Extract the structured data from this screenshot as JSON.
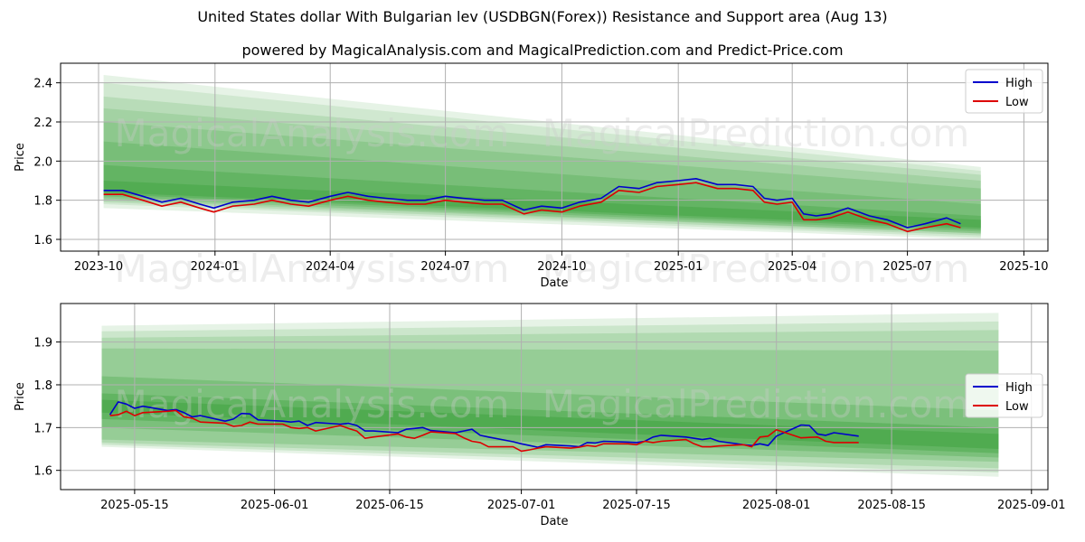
{
  "title": "United States dollar With Bulgarian lev (USDBGN(Forex)) Resistance and Support area (Aug 13)",
  "subtitle": "powered by MagicalAnalysis.com and MagicalPrediction.com and Predict-Price.com",
  "watermarks": [
    "MagicalAnalysis.com",
    "MagicalPrediction.com"
  ],
  "colors": {
    "high": "#0000cc",
    "low": "#dd0000",
    "band": "#2e9a2e",
    "grid": "#b0b0b0"
  },
  "chart_data": [
    {
      "type": "line",
      "xlabel": "Date",
      "ylabel": "Price",
      "xlim": [
        "2023-09-01",
        "2025-10-20"
      ],
      "ylim": [
        1.54,
        2.5
      ],
      "x_ticks": [
        "2023-10",
        "2024-01",
        "2024-04",
        "2024-07",
        "2024-10",
        "2025-01",
        "2025-04",
        "2025-07",
        "2025-10"
      ],
      "y_ticks": [
        1.6,
        1.8,
        2.0,
        2.2,
        2.4
      ],
      "grid": true,
      "legend": {
        "position": "top-right",
        "entries": [
          "High",
          "Low"
        ]
      },
      "bands": {
        "x_start": "2023-10-05",
        "x_end": "2025-08-28",
        "ranges": [
          {
            "start": [
              1.76,
              2.44
            ],
            "end": [
              1.6,
              1.97
            ],
            "opacity": 0.12
          },
          {
            "start": [
              1.78,
              2.4
            ],
            "end": [
              1.61,
              1.95
            ],
            "opacity": 0.12
          },
          {
            "start": [
              1.79,
              2.33
            ],
            "end": [
              1.62,
              1.93
            ],
            "opacity": 0.15
          },
          {
            "start": [
              1.8,
              2.27
            ],
            "end": [
              1.63,
              1.9
            ],
            "opacity": 0.15
          },
          {
            "start": [
              1.81,
              2.2
            ],
            "end": [
              1.63,
              1.86
            ],
            "opacity": 0.18
          },
          {
            "start": [
              1.82,
              2.1
            ],
            "end": [
              1.64,
              1.78
            ],
            "opacity": 0.22
          },
          {
            "start": [
              1.83,
              1.98
            ],
            "end": [
              1.65,
              1.72
            ],
            "opacity": 0.28
          },
          {
            "start": [
              1.84,
              1.9
            ],
            "end": [
              1.66,
              1.7
            ],
            "opacity": 0.32
          }
        ]
      },
      "series": [
        {
          "name": "High",
          "x": [
            "2023-10-05",
            "2023-10-20",
            "2023-11-05",
            "2023-11-20",
            "2023-12-05",
            "2023-12-20",
            "2023-12-31",
            "2024-01-15",
            "2024-02-01",
            "2024-02-15",
            "2024-03-01",
            "2024-03-15",
            "2024-04-01",
            "2024-04-15",
            "2024-05-01",
            "2024-05-15",
            "2024-06-01",
            "2024-06-15",
            "2024-07-01",
            "2024-07-15",
            "2024-08-01",
            "2024-08-15",
            "2024-09-01",
            "2024-09-15",
            "2024-10-01",
            "2024-10-15",
            "2024-11-01",
            "2024-11-15",
            "2024-12-01",
            "2024-12-15",
            "2025-01-01",
            "2025-01-15",
            "2025-02-01",
            "2025-02-15",
            "2025-03-01",
            "2025-03-10",
            "2025-03-20",
            "2025-04-01",
            "2025-04-10",
            "2025-04-20",
            "2025-05-01",
            "2025-05-15",
            "2025-06-01",
            "2025-06-15",
            "2025-07-01",
            "2025-07-15",
            "2025-08-01",
            "2025-08-12"
          ],
          "values": [
            1.85,
            1.85,
            1.82,
            1.79,
            1.81,
            1.78,
            1.76,
            1.79,
            1.8,
            1.82,
            1.8,
            1.79,
            1.82,
            1.84,
            1.82,
            1.81,
            1.8,
            1.8,
            1.82,
            1.81,
            1.8,
            1.8,
            1.75,
            1.77,
            1.76,
            1.79,
            1.81,
            1.87,
            1.86,
            1.89,
            1.9,
            1.91,
            1.88,
            1.88,
            1.87,
            1.81,
            1.8,
            1.81,
            1.73,
            1.72,
            1.73,
            1.76,
            1.72,
            1.7,
            1.66,
            1.68,
            1.71,
            1.68
          ]
        },
        {
          "name": "Low",
          "x": [
            "2023-10-05",
            "2023-10-20",
            "2023-11-05",
            "2023-11-20",
            "2023-12-05",
            "2023-12-20",
            "2023-12-31",
            "2024-01-15",
            "2024-02-01",
            "2024-02-15",
            "2024-03-01",
            "2024-03-15",
            "2024-04-01",
            "2024-04-15",
            "2024-05-01",
            "2024-05-15",
            "2024-06-01",
            "2024-06-15",
            "2024-07-01",
            "2024-07-15",
            "2024-08-01",
            "2024-08-15",
            "2024-09-01",
            "2024-09-15",
            "2024-10-01",
            "2024-10-15",
            "2024-11-01",
            "2024-11-15",
            "2024-12-01",
            "2024-12-15",
            "2025-01-01",
            "2025-01-15",
            "2025-02-01",
            "2025-02-15",
            "2025-03-01",
            "2025-03-10",
            "2025-03-20",
            "2025-04-01",
            "2025-04-10",
            "2025-04-20",
            "2025-05-01",
            "2025-05-15",
            "2025-06-01",
            "2025-06-15",
            "2025-07-01",
            "2025-07-15",
            "2025-08-01",
            "2025-08-12"
          ],
          "values": [
            1.83,
            1.83,
            1.8,
            1.77,
            1.79,
            1.76,
            1.74,
            1.77,
            1.78,
            1.8,
            1.78,
            1.77,
            1.8,
            1.82,
            1.8,
            1.79,
            1.78,
            1.78,
            1.8,
            1.79,
            1.78,
            1.78,
            1.73,
            1.75,
            1.74,
            1.77,
            1.79,
            1.85,
            1.84,
            1.87,
            1.88,
            1.89,
            1.86,
            1.86,
            1.85,
            1.79,
            1.78,
            1.79,
            1.7,
            1.7,
            1.71,
            1.74,
            1.7,
            1.68,
            1.64,
            1.66,
            1.68,
            1.66
          ]
        }
      ]
    },
    {
      "type": "line",
      "xlabel": "Date",
      "ylabel": "Price",
      "xlim": [
        "2025-05-06",
        "2025-09-03"
      ],
      "ylim": [
        1.555,
        1.99
      ],
      "x_ticks": [
        "2025-05-15",
        "2025-06-01",
        "2025-06-15",
        "2025-07-01",
        "2025-07-15",
        "2025-08-01",
        "2025-08-15",
        "2025-09-01"
      ],
      "y_ticks": [
        1.6,
        1.7,
        1.8,
        1.9
      ],
      "grid": true,
      "legend": {
        "position": "center-right",
        "entries": [
          "High",
          "Low"
        ]
      },
      "bands": {
        "x_start": "2025-05-11",
        "x_end": "2025-08-28",
        "ranges": [
          {
            "start": [
              1.655,
              1.938
            ],
            "end": [
              1.585,
              1.968
            ],
            "opacity": 0.12
          },
          {
            "start": [
              1.66,
              1.925
            ],
            "end": [
              1.595,
              1.948
            ],
            "opacity": 0.14
          },
          {
            "start": [
              1.665,
              1.91
            ],
            "end": [
              1.605,
              1.928
            ],
            "opacity": 0.16
          },
          {
            "start": [
              1.672,
              1.885
            ],
            "end": [
              1.62,
              1.88
            ],
            "opacity": 0.2
          },
          {
            "start": [
              1.7,
              1.82
            ],
            "end": [
              1.63,
              1.74
            ],
            "opacity": 0.26
          },
          {
            "start": [
              1.72,
              1.78
            ],
            "end": [
              1.64,
              1.7
            ],
            "opacity": 0.32
          },
          {
            "start": [
              1.735,
              1.765
            ],
            "end": [
              1.65,
              1.685
            ],
            "opacity": 0.34
          }
        ]
      },
      "series": [
        {
          "name": "High",
          "x": [
            "2025-05-12",
            "2025-05-13",
            "2025-05-14",
            "2025-05-15",
            "2025-05-16",
            "2025-05-19",
            "2025-05-20",
            "2025-05-21",
            "2025-05-22",
            "2025-05-23",
            "2025-05-26",
            "2025-05-27",
            "2025-05-28",
            "2025-05-29",
            "2025-05-30",
            "2025-06-02",
            "2025-06-03",
            "2025-06-04",
            "2025-06-05",
            "2025-06-06",
            "2025-06-09",
            "2025-06-10",
            "2025-06-11",
            "2025-06-12",
            "2025-06-13",
            "2025-06-16",
            "2025-06-17",
            "2025-06-18",
            "2025-06-19",
            "2025-06-20",
            "2025-06-23",
            "2025-06-24",
            "2025-06-25",
            "2025-06-26",
            "2025-06-27",
            "2025-06-30",
            "2025-07-01",
            "2025-07-02",
            "2025-07-03",
            "2025-07-04",
            "2025-07-07",
            "2025-07-08",
            "2025-07-09",
            "2025-07-10",
            "2025-07-11",
            "2025-07-14",
            "2025-07-15",
            "2025-07-16",
            "2025-07-17",
            "2025-07-18",
            "2025-07-21",
            "2025-07-22",
            "2025-07-23",
            "2025-07-24",
            "2025-07-25",
            "2025-07-28",
            "2025-07-29",
            "2025-07-30",
            "2025-07-31",
            "2025-08-01",
            "2025-08-04",
            "2025-08-05",
            "2025-08-06",
            "2025-08-07",
            "2025-08-08",
            "2025-08-11"
          ],
          "values": [
            1.73,
            1.76,
            1.755,
            1.745,
            1.75,
            1.74,
            1.742,
            1.735,
            1.725,
            1.728,
            1.715,
            1.72,
            1.733,
            1.732,
            1.718,
            1.715,
            1.713,
            1.715,
            1.705,
            1.712,
            1.708,
            1.71,
            1.705,
            1.692,
            1.692,
            1.688,
            1.696,
            1.698,
            1.7,
            1.693,
            1.688,
            1.692,
            1.696,
            1.682,
            1.678,
            1.667,
            1.662,
            1.658,
            1.654,
            1.66,
            1.657,
            1.655,
            1.665,
            1.664,
            1.668,
            1.666,
            1.665,
            1.668,
            1.678,
            1.682,
            1.678,
            1.675,
            1.672,
            1.675,
            1.668,
            1.66,
            1.658,
            1.662,
            1.658,
            1.68,
            1.706,
            1.705,
            1.685,
            1.682,
            1.688,
            1.68
          ]
        },
        {
          "name": "Low",
          "x": [
            "2025-05-12",
            "2025-05-13",
            "2025-05-14",
            "2025-05-15",
            "2025-05-16",
            "2025-05-19",
            "2025-05-20",
            "2025-05-21",
            "2025-05-22",
            "2025-05-23",
            "2025-05-26",
            "2025-05-27",
            "2025-05-28",
            "2025-05-29",
            "2025-05-30",
            "2025-06-02",
            "2025-06-03",
            "2025-06-04",
            "2025-06-05",
            "2025-06-06",
            "2025-06-09",
            "2025-06-10",
            "2025-06-11",
            "2025-06-12",
            "2025-06-13",
            "2025-06-16",
            "2025-06-17",
            "2025-06-18",
            "2025-06-19",
            "2025-06-20",
            "2025-06-23",
            "2025-06-24",
            "2025-06-25",
            "2025-06-26",
            "2025-06-27",
            "2025-06-30",
            "2025-07-01",
            "2025-07-02",
            "2025-07-03",
            "2025-07-04",
            "2025-07-07",
            "2025-07-08",
            "2025-07-09",
            "2025-07-10",
            "2025-07-11",
            "2025-07-14",
            "2025-07-15",
            "2025-07-16",
            "2025-07-17",
            "2025-07-18",
            "2025-07-21",
            "2025-07-22",
            "2025-07-23",
            "2025-07-24",
            "2025-07-25",
            "2025-07-28",
            "2025-07-29",
            "2025-07-30",
            "2025-07-31",
            "2025-08-01",
            "2025-08-04",
            "2025-08-05",
            "2025-08-06",
            "2025-08-07",
            "2025-08-08",
            "2025-08-11"
          ],
          "values": [
            1.728,
            1.73,
            1.738,
            1.728,
            1.735,
            1.738,
            1.74,
            1.725,
            1.722,
            1.713,
            1.71,
            1.703,
            1.705,
            1.713,
            1.708,
            1.708,
            1.7,
            1.698,
            1.7,
            1.692,
            1.705,
            1.698,
            1.692,
            1.675,
            1.678,
            1.685,
            1.678,
            1.675,
            1.682,
            1.69,
            1.686,
            1.676,
            1.668,
            1.665,
            1.655,
            1.655,
            1.645,
            1.648,
            1.652,
            1.655,
            1.652,
            1.654,
            1.658,
            1.656,
            1.662,
            1.662,
            1.66,
            1.668,
            1.665,
            1.668,
            1.672,
            1.662,
            1.655,
            1.655,
            1.657,
            1.66,
            1.655,
            1.678,
            1.68,
            1.695,
            1.676,
            1.677,
            1.678,
            1.668,
            1.665,
            1.665
          ]
        }
      ]
    }
  ]
}
